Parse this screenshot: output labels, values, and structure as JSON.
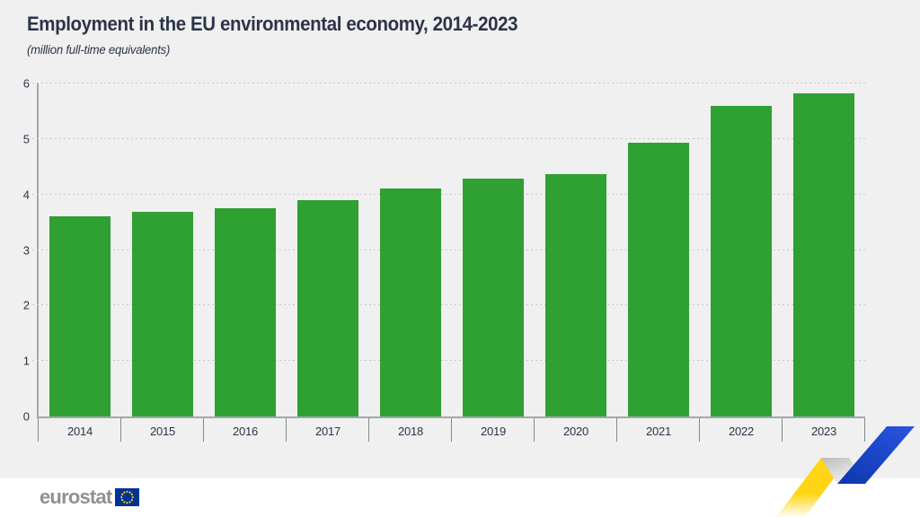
{
  "header": {
    "title": "Employment in the EU environmental economy, 2014-2023",
    "subtitle": "(million full-time equivalents)"
  },
  "chart_data": {
    "type": "bar",
    "title": "Employment in the EU environmental economy, 2014-2023",
    "subtitle": "(million full-time equivalents)",
    "categories": [
      "2014",
      "2015",
      "2016",
      "2017",
      "2018",
      "2019",
      "2020",
      "2021",
      "2022",
      "2023"
    ],
    "values": [
      3.61,
      3.68,
      3.76,
      3.9,
      4.1,
      4.28,
      4.36,
      4.93,
      5.59,
      5.83
    ],
    "xlabel": "",
    "ylabel": "",
    "ylim": [
      0,
      6
    ],
    "yticks": [
      0,
      1,
      2,
      3,
      4,
      5,
      6
    ],
    "grid": "horizontal-dotted",
    "legend": null,
    "bar_color": "#2fa032"
  },
  "footer": {
    "logo_text": "eurostat"
  },
  "colors": {
    "background": "#f0f0f1",
    "bar_green": "#2fa032",
    "text_dark": "#2b3447",
    "axis_gray": "#a4a7ac",
    "grid_dot": "#c8c9cd",
    "wordmark_gray": "#8e9095",
    "eu_flag_blue": "#003399",
    "eu_star_yellow": "#ffcc00",
    "logo_yellow": "#ffd514",
    "logo_blue": "#1745d0"
  }
}
